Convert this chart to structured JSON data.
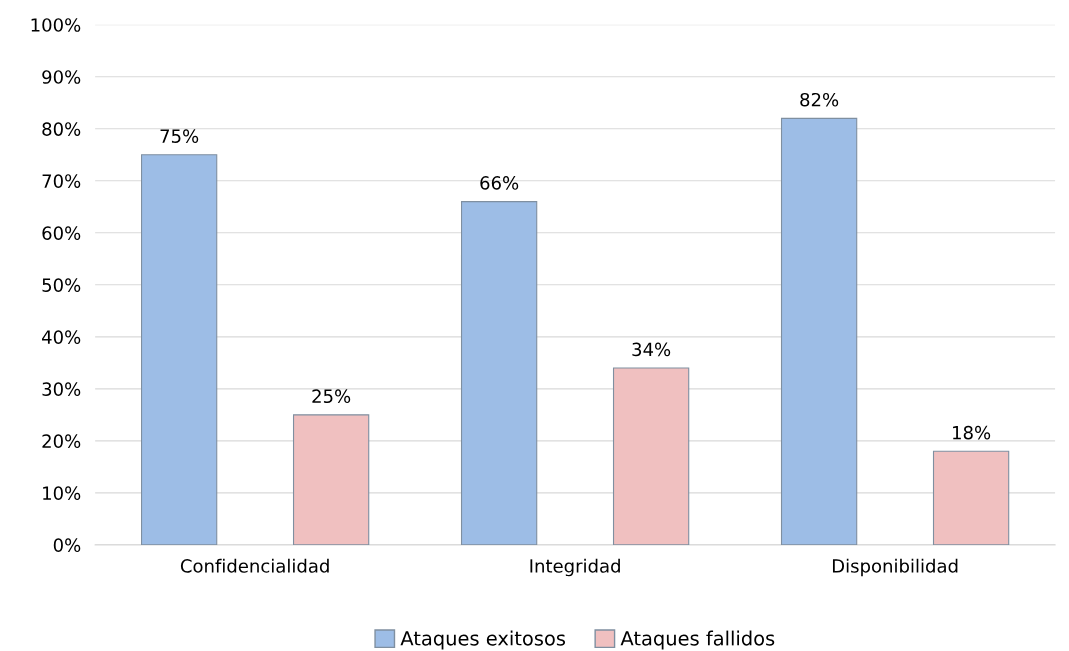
{
  "chart_data": {
    "type": "bar",
    "categories": [
      "Confidencialidad",
      "Integridad",
      "Disponibilidad"
    ],
    "series": [
      {
        "name": "Ataques exitosos",
        "color": "#9dbde6",
        "values": [
          75,
          66,
          82
        ],
        "value_labels": [
          "75%",
          "66%",
          "82%"
        ]
      },
      {
        "name": "Ataques fallidos",
        "color": "#f0c0c0",
        "values": [
          25,
          34,
          18
        ],
        "value_labels": [
          "25%",
          "34%",
          "18%"
        ]
      }
    ],
    "ylim": [
      0,
      100
    ],
    "yticks": [
      {
        "value": 0,
        "label": "0%"
      },
      {
        "value": 10,
        "label": "10%"
      },
      {
        "value": 20,
        "label": "20%"
      },
      {
        "value": 30,
        "label": "30%"
      },
      {
        "value": 40,
        "label": "40%"
      },
      {
        "value": 50,
        "label": "50%"
      },
      {
        "value": 60,
        "label": "60%"
      },
      {
        "value": 70,
        "label": "70%"
      },
      {
        "value": 80,
        "label": "80%"
      },
      {
        "value": 90,
        "label": "90%"
      },
      {
        "value": 100,
        "label": "100%"
      }
    ],
    "grid": "y",
    "legend": "bottom"
  }
}
